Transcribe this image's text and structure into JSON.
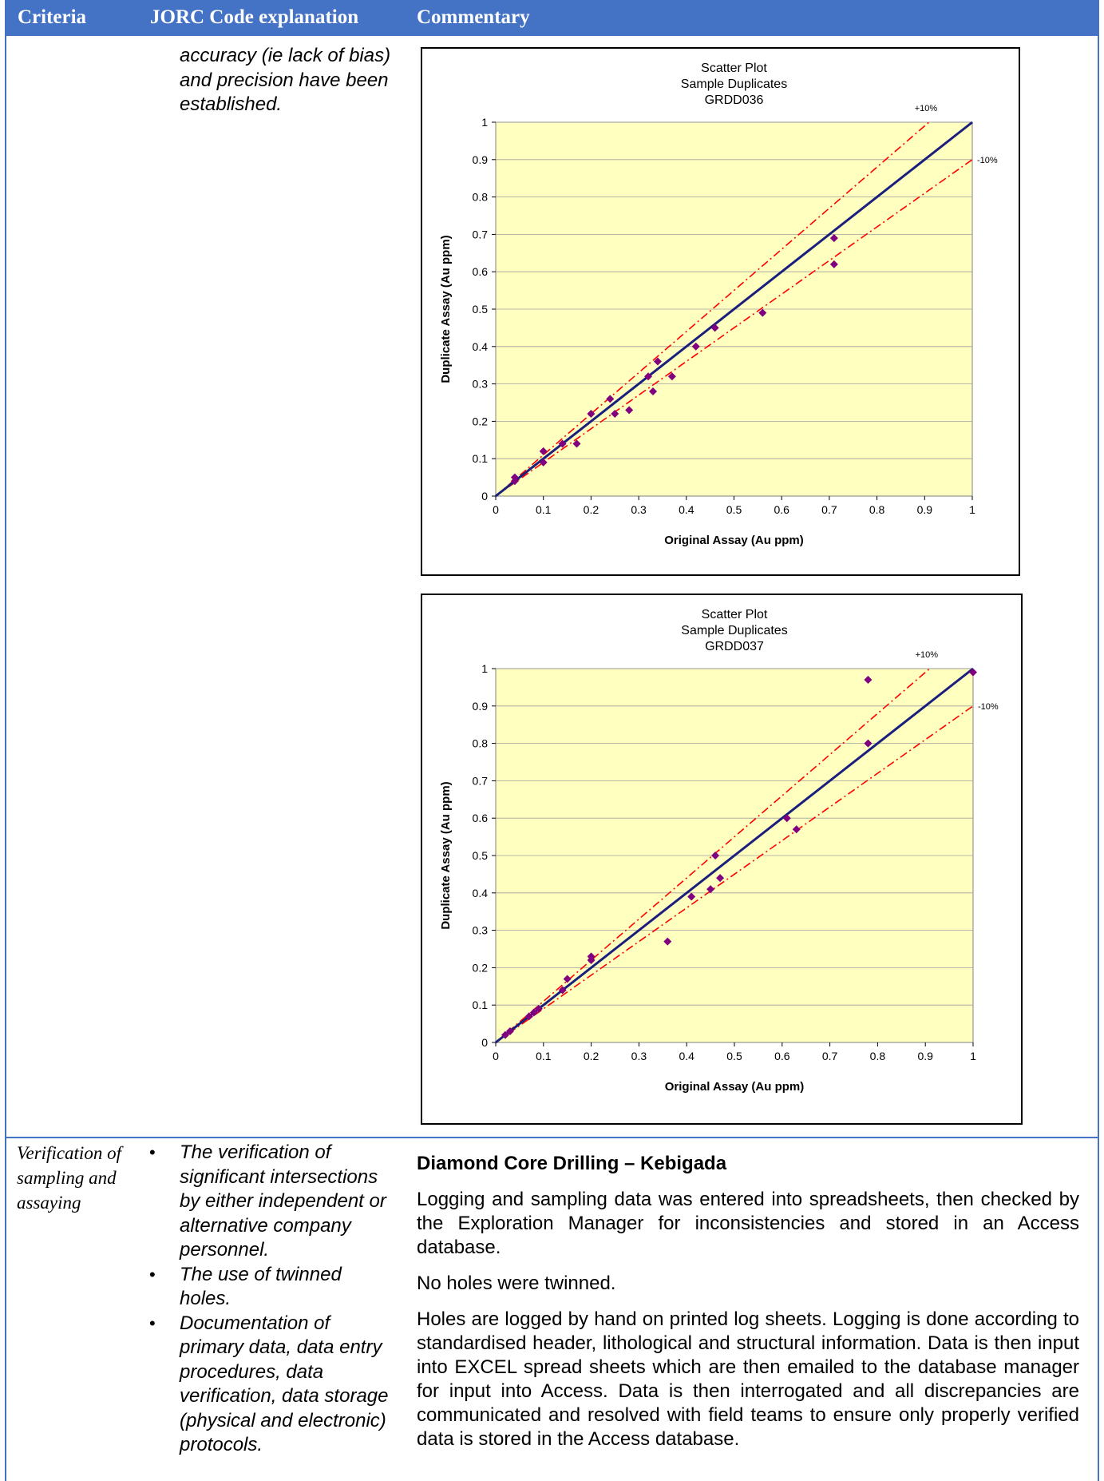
{
  "header": {
    "criteria": "Criteria",
    "jorc": "JORC Code explanation",
    "commentary": "Commentary"
  },
  "row1": {
    "jorc_text": "accuracy (ie lack of bias) and precision have been established."
  },
  "charts": [
    {
      "title_lines": [
        "Scatter Plot",
        "Sample Duplicates",
        "GRDD036"
      ],
      "xlabel": "Original Assay (Au ppm)",
      "ylabel": "Duplicate Assay (Au ppm)",
      "plus_label": "+10%",
      "minus_label": "-10%",
      "ticks": [
        "0",
        "0.1",
        "0.2",
        "0.3",
        "0.4",
        "0.5",
        "0.6",
        "0.7",
        "0.8",
        "0.9",
        "1"
      ],
      "colors": {
        "plot_bg": "#ffffc0",
        "line": "#1a1f7e",
        "bounds": "#ff0000",
        "points": "#800080"
      }
    },
    {
      "title_lines": [
        "Scatter Plot",
        "Sample Duplicates",
        "GRDD037"
      ],
      "xlabel": "Original Assay (Au ppm)",
      "ylabel": "Duplicate Assay (Au ppm)",
      "plus_label": "+10%",
      "minus_label": "-10%",
      "ticks": [
        "0",
        "0.1",
        "0.2",
        "0.3",
        "0.4",
        "0.5",
        "0.6",
        "0.7",
        "0.8",
        "0.9",
        "1"
      ],
      "colors": {
        "plot_bg": "#ffffc0",
        "line": "#1a1f7e",
        "bounds": "#ff0000",
        "points": "#800080"
      }
    }
  ],
  "chart_data": [
    {
      "type": "scatter",
      "title": "Scatter Plot Sample Duplicates GRDD036",
      "xlabel": "Original Assay (Au ppm)",
      "ylabel": "Duplicate Assay (Au ppm)",
      "xlim": [
        0,
        1
      ],
      "ylim": [
        0,
        1
      ],
      "grid": true,
      "reference_lines": [
        "1:1",
        "+10%",
        "-10%"
      ],
      "x": [
        0.04,
        0.04,
        0.1,
        0.1,
        0.14,
        0.17,
        0.2,
        0.24,
        0.25,
        0.28,
        0.32,
        0.33,
        0.34,
        0.37,
        0.42,
        0.46,
        0.56,
        0.71,
        0.71
      ],
      "y": [
        0.05,
        0.04,
        0.12,
        0.09,
        0.14,
        0.14,
        0.22,
        0.26,
        0.22,
        0.23,
        0.32,
        0.28,
        0.36,
        0.32,
        0.4,
        0.45,
        0.49,
        0.69,
        0.62
      ]
    },
    {
      "type": "scatter",
      "title": "Scatter Plot Sample Duplicates GRDD037",
      "xlabel": "Original Assay (Au ppm)",
      "ylabel": "Duplicate Assay (Au ppm)",
      "xlim": [
        0,
        1
      ],
      "ylim": [
        0,
        1
      ],
      "grid": true,
      "reference_lines": [
        "1:1",
        "+10%",
        "-10%"
      ],
      "x": [
        0.02,
        0.03,
        0.07,
        0.08,
        0.09,
        0.14,
        0.15,
        0.2,
        0.2,
        0.36,
        0.41,
        0.45,
        0.46,
        0.47,
        0.61,
        0.63,
        0.78,
        0.78,
        1.0
      ],
      "y": [
        0.02,
        0.03,
        0.07,
        0.08,
        0.09,
        0.14,
        0.17,
        0.22,
        0.23,
        0.27,
        0.39,
        0.41,
        0.5,
        0.44,
        0.6,
        0.57,
        0.8,
        0.97,
        0.99
      ]
    }
  ],
  "row2": {
    "criteria": "Verification of sampling and assaying",
    "bullets": [
      "The verification of significant intersections by either independent or alternative company personnel.",
      "The use of twinned holes.",
      "Documentation of primary data, data entry procedures, data verification, data storage (physical and electronic) protocols."
    ],
    "heading": "Diamond Core Drilling – Kebigada",
    "paragraphs": [
      "Logging and sampling data was entered into spreadsheets, then checked by the Exploration Manager for inconsistencies and stored in an Access database.",
      "No holes were twinned.",
      "Holes are logged by hand on printed log sheets. Logging is done according to standardised header, lithological and structural information. Data is then input into EXCEL spread sheets which are then emailed to the database manager for input into Access. Data is then interrogated and all discrepancies are communicated and resolved with field teams to ensure only properly verified data is stored in the Access database."
    ]
  }
}
